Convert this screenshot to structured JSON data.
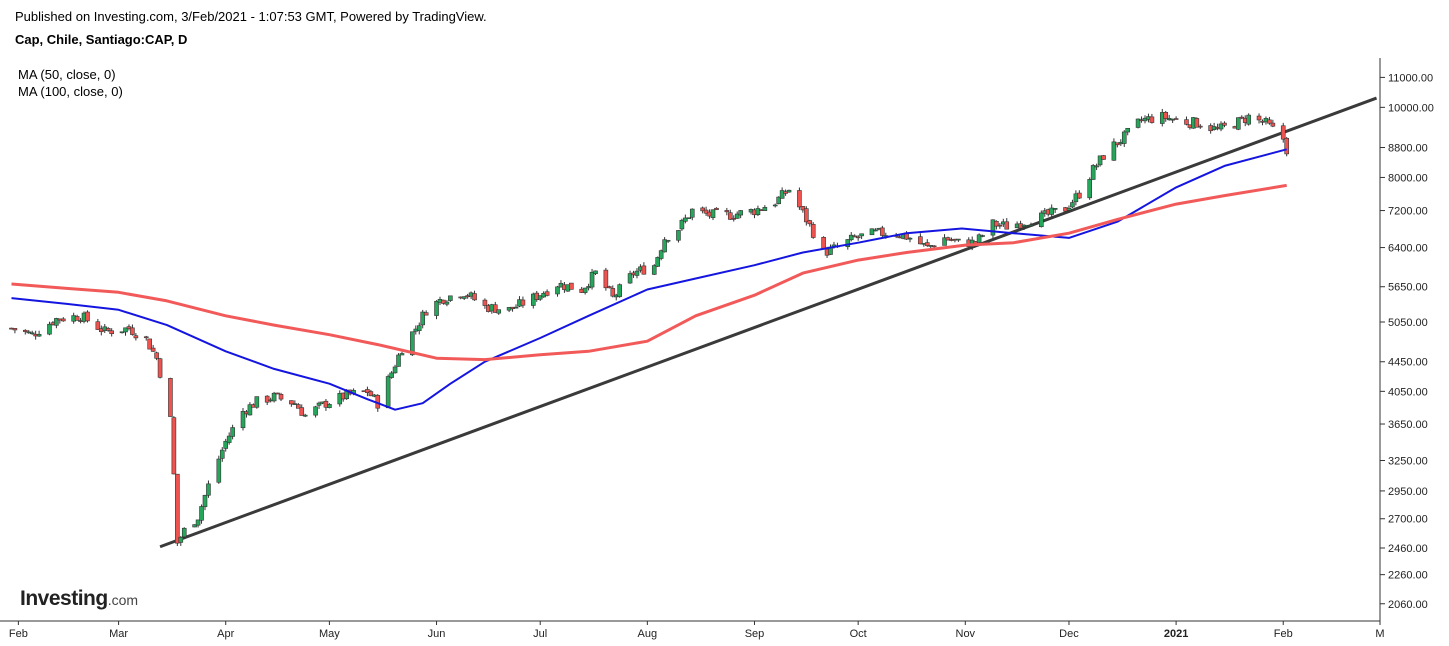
{
  "header": {
    "published": "Published on Investing.com, 3/Feb/2021 - 1:07:53 GMT, Powered by TradingView.",
    "symbol": "Cap, Chile, Santiago:CAP, D"
  },
  "legend": {
    "ma50": "MA (50, close, 0)",
    "ma100": "MA (100, close, 0)"
  },
  "logo": {
    "main": "Investing",
    "suffix": ".com"
  },
  "colors": {
    "up": "#26a65b",
    "down": "#ef5350",
    "ma50": "#1515e0",
    "ma100": "#f25a5a",
    "trendline": "#3a3a3a"
  },
  "chart_data": {
    "type": "candlestick",
    "title": "Cap, Chile, Santiago:CAP, D",
    "y_scale": "log",
    "ylim": [
      1950,
      11700
    ],
    "y_ticks": [
      11000,
      10000,
      8800,
      8000,
      7200,
      6400,
      5650,
      5050,
      4450,
      4050,
      3650,
      3250,
      2950,
      2700,
      2460,
      2260,
      2060
    ],
    "y_tick_labels": [
      "11000.00",
      "10000.00",
      "8800.00",
      "8000.00",
      "7200.00",
      "6400.00",
      "5650.00",
      "5050.00",
      "4450.00",
      "4050.00",
      "3650.00",
      "3250.00",
      "2950.00",
      "2700.00",
      "2460.00",
      "2260.00",
      "2060.00"
    ],
    "x_ticks": [
      "Feb",
      "Mar",
      "Apr",
      "May",
      "Jun",
      "Jul",
      "Aug",
      "Sep",
      "Oct",
      "Nov",
      "Dec",
      "2021",
      "Feb",
      "M"
    ],
    "x_tick_dates": [
      "2020-02-01",
      "2020-03-01",
      "2020-04-01",
      "2020-05-01",
      "2020-06-01",
      "2020-07-01",
      "2020-08-01",
      "2020-09-01",
      "2020-10-01",
      "2020-11-01",
      "2020-12-01",
      "2021-01-01",
      "2021-02-01",
      "2021-03-01"
    ],
    "xlim": [
      "2020-01-29",
      "2021-03-01"
    ],
    "close_series": [
      [
        "2020-01-30",
        4950
      ],
      [
        "2020-02-05",
        4850
      ],
      [
        "2020-02-12",
        5100
      ],
      [
        "2020-02-19",
        5150
      ],
      [
        "2020-02-26",
        4900
      ],
      [
        "2020-03-04",
        4950
      ],
      [
        "2020-03-09",
        4780
      ],
      [
        "2020-03-12",
        4500
      ],
      [
        "2020-03-16",
        3700
      ],
      [
        "2020-03-18",
        2500
      ],
      [
        "2020-03-20",
        2600
      ],
      [
        "2020-03-24",
        2720
      ],
      [
        "2020-03-27",
        3000
      ],
      [
        "2020-04-01",
        3450
      ],
      [
        "2020-04-06",
        3800
      ],
      [
        "2020-04-10",
        3920
      ],
      [
        "2020-04-15",
        3980
      ],
      [
        "2020-04-21",
        3900
      ],
      [
        "2020-04-24",
        3750
      ],
      [
        "2020-04-30",
        3900
      ],
      [
        "2020-05-06",
        4000
      ],
      [
        "2020-05-12",
        4050
      ],
      [
        "2020-05-15",
        3900
      ],
      [
        "2020-05-19",
        4300
      ],
      [
        "2020-05-22",
        4650
      ],
      [
        "2020-05-26",
        4950
      ],
      [
        "2020-05-29",
        5250
      ],
      [
        "2020-06-03",
        5450
      ],
      [
        "2020-06-09",
        5550
      ],
      [
        "2020-06-15",
        5300
      ],
      [
        "2020-06-22",
        5250
      ],
      [
        "2020-06-29",
        5450
      ],
      [
        "2020-07-06",
        5700
      ],
      [
        "2020-07-13",
        5600
      ],
      [
        "2020-07-17",
        5900
      ],
      [
        "2020-07-22",
        5450
      ],
      [
        "2020-07-28",
        5900
      ],
      [
        "2020-08-03",
        6050
      ],
      [
        "2020-08-06",
        6600
      ],
      [
        "2020-08-10",
        6800
      ],
      [
        "2020-08-14",
        7200
      ],
      [
        "2020-08-19",
        7100
      ],
      [
        "2020-08-25",
        7100
      ],
      [
        "2020-09-01",
        7200
      ],
      [
        "2020-09-07",
        7400
      ],
      [
        "2020-09-11",
        7700
      ],
      [
        "2020-09-16",
        7000
      ],
      [
        "2020-09-21",
        6300
      ],
      [
        "2020-09-25",
        6400
      ],
      [
        "2020-09-30",
        6600
      ],
      [
        "2020-10-06",
        6700
      ],
      [
        "2020-10-12",
        6700
      ],
      [
        "2020-10-16",
        6600
      ],
      [
        "2020-10-21",
        6400
      ],
      [
        "2020-10-26",
        6600
      ],
      [
        "2020-10-30",
        6500
      ],
      [
        "2020-11-04",
        6500
      ],
      [
        "2020-11-09",
        6900
      ],
      [
        "2020-11-13",
        6850
      ],
      [
        "2020-11-18",
        6950
      ],
      [
        "2020-11-23",
        7050
      ],
      [
        "2020-11-30",
        7250
      ],
      [
        "2020-12-04",
        7600
      ],
      [
        "2020-12-08",
        8200
      ],
      [
        "2020-12-12",
        8700
      ],
      [
        "2020-12-17",
        9100
      ],
      [
        "2020-12-22",
        9600
      ],
      [
        "2020-12-28",
        9700
      ],
      [
        "2021-01-04",
        9550
      ],
      [
        "2021-01-08",
        9500
      ],
      [
        "2021-01-13",
        9300
      ],
      [
        "2021-01-18",
        9500
      ],
      [
        "2021-01-22",
        9700
      ],
      [
        "2021-01-27",
        9500
      ],
      [
        "2021-02-01",
        9050
      ],
      [
        "2021-02-02",
        8750
      ]
    ],
    "series": [
      {
        "name": "MA (50, close, 0)",
        "values": [
          [
            "2020-01-30",
            5450
          ],
          [
            "2020-02-15",
            5350
          ],
          [
            "2020-03-01",
            5250
          ],
          [
            "2020-03-15",
            5000
          ],
          [
            "2020-04-01",
            4600
          ],
          [
            "2020-04-15",
            4350
          ],
          [
            "2020-05-01",
            4150
          ],
          [
            "2020-05-12",
            3950
          ],
          [
            "2020-05-20",
            3820
          ],
          [
            "2020-05-28",
            3900
          ],
          [
            "2020-06-05",
            4150
          ],
          [
            "2020-06-15",
            4450
          ],
          [
            "2020-07-01",
            4800
          ],
          [
            "2020-07-15",
            5150
          ],
          [
            "2020-08-01",
            5600
          ],
          [
            "2020-08-15",
            5800
          ],
          [
            "2020-09-01",
            6050
          ],
          [
            "2020-09-15",
            6300
          ],
          [
            "2020-10-01",
            6500
          ],
          [
            "2020-10-15",
            6700
          ],
          [
            "2020-10-31",
            6800
          ],
          [
            "2020-11-15",
            6700
          ],
          [
            "2020-12-01",
            6600
          ],
          [
            "2020-12-15",
            6950
          ],
          [
            "2021-01-01",
            7750
          ],
          [
            "2021-01-15",
            8300
          ],
          [
            "2021-02-02",
            8750
          ]
        ]
      },
      {
        "name": "MA (100, close, 0)",
        "values": [
          [
            "2020-01-30",
            5700
          ],
          [
            "2020-02-15",
            5620
          ],
          [
            "2020-03-01",
            5550
          ],
          [
            "2020-03-15",
            5400
          ],
          [
            "2020-04-01",
            5150
          ],
          [
            "2020-04-15",
            5000
          ],
          [
            "2020-05-01",
            4850
          ],
          [
            "2020-05-15",
            4700
          ],
          [
            "2020-06-01",
            4500
          ],
          [
            "2020-06-15",
            4480
          ],
          [
            "2020-07-01",
            4550
          ],
          [
            "2020-07-15",
            4600
          ],
          [
            "2020-08-01",
            4750
          ],
          [
            "2020-08-15",
            5150
          ],
          [
            "2020-09-01",
            5500
          ],
          [
            "2020-09-15",
            5900
          ],
          [
            "2020-10-01",
            6150
          ],
          [
            "2020-10-15",
            6300
          ],
          [
            "2020-11-01",
            6450
          ],
          [
            "2020-11-15",
            6500
          ],
          [
            "2020-12-01",
            6700
          ],
          [
            "2020-12-15",
            7000
          ],
          [
            "2021-01-01",
            7350
          ],
          [
            "2021-01-15",
            7550
          ],
          [
            "2021-02-02",
            7800
          ]
        ]
      }
    ],
    "trendline": {
      "from": [
        "2020-03-13",
        2470
      ],
      "to": [
        "2021-02-28",
        10300
      ]
    },
    "grid": false,
    "legend_position": "top-left"
  }
}
